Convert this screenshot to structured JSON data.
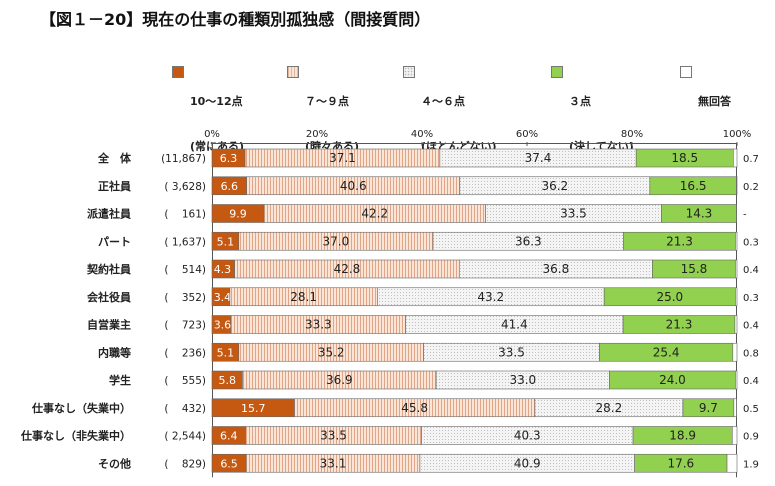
{
  "chart_data": {
    "type": "bar",
    "orientation": "horizontal",
    "stacked": true,
    "title": "【図１－20】現在の仕事の種類別孤独感（間接質問）",
    "xlabel": "",
    "ylabel": "",
    "xlim": [
      0,
      100
    ],
    "x_ticks": [
      "0%",
      "20%",
      "40%",
      "60%",
      "80%",
      "100%"
    ],
    "legend": [
      {
        "line1": "10～12点",
        "line2": "(常にある)",
        "color": "#c65911"
      },
      {
        "line1": "７～９点",
        "line2": "(時々ある)",
        "color": "#fbe5d6"
      },
      {
        "line1": "４～６点",
        "line2": "(ほとんどない)",
        "color": "#f2f2f2"
      },
      {
        "line1": "３点",
        "line2": "(決してない)",
        "color": "#92d050"
      },
      {
        "line1": "無回答",
        "line2": "",
        "color": "#ffffff"
      }
    ],
    "categories": [
      "全　体",
      "正社員",
      "派遣社員",
      "パート",
      "契約社員",
      "会社役員",
      "自営業主",
      "内職等",
      "学生",
      "仕事なし（失業中）",
      "仕事なし（非失業中）",
      "その他"
    ],
    "sample_sizes": [
      "(11,867)",
      "( 3,628)",
      "(    161)",
      "( 1,637)",
      "(    514)",
      "(    352)",
      "(    723)",
      "(    236)",
      "(    555)",
      "(    432)",
      "( 2,544)",
      "(    829)"
    ],
    "series": [
      {
        "name": "10～12点（常にある）",
        "values": [
          6.3,
          6.6,
          9.9,
          5.1,
          4.3,
          3.4,
          3.6,
          5.1,
          5.8,
          15.7,
          6.4,
          6.5
        ]
      },
      {
        "name": "７～９点（時々ある）",
        "values": [
          37.1,
          40.6,
          42.2,
          37.0,
          42.8,
          28.1,
          33.3,
          35.2,
          36.9,
          45.8,
          33.5,
          33.1
        ]
      },
      {
        "name": "４～６点（ほとんどない）",
        "values": [
          37.4,
          36.2,
          33.5,
          36.3,
          36.8,
          43.2,
          41.4,
          33.5,
          33.0,
          28.2,
          40.3,
          40.9
        ]
      },
      {
        "name": "３点（決してない）",
        "values": [
          18.5,
          16.5,
          14.3,
          21.3,
          15.8,
          25.0,
          21.3,
          25.4,
          24.0,
          9.7,
          18.9,
          17.6
        ]
      },
      {
        "name": "無回答",
        "values": [
          0.7,
          0.2,
          null,
          0.3,
          0.4,
          0.3,
          0.4,
          0.8,
          0.4,
          0.5,
          0.9,
          1.9
        ]
      }
    ],
    "value_labels": [
      [
        "6.3",
        "37.1",
        "37.4",
        "18.5",
        "0.7"
      ],
      [
        "6.6",
        "40.6",
        "36.2",
        "16.5",
        "0.2"
      ],
      [
        "9.9",
        "42.2",
        "33.5",
        "14.3",
        "-"
      ],
      [
        "5.1",
        "37.0",
        "36.3",
        "21.3",
        "0.3"
      ],
      [
        "4.3",
        "42.8",
        "36.8",
        "15.8",
        "0.4"
      ],
      [
        "3.4",
        "28.1",
        "43.2",
        "25.0",
        "0.3"
      ],
      [
        "3.6",
        "33.3",
        "41.4",
        "21.3",
        "0.4"
      ],
      [
        "5.1",
        "35.2",
        "33.5",
        "25.4",
        "0.8"
      ],
      [
        "5.8",
        "36.9",
        "33.0",
        "24.0",
        "0.4"
      ],
      [
        "15.7",
        "45.8",
        "28.2",
        "9.7",
        "0.5"
      ],
      [
        "6.4",
        "33.5",
        "40.3",
        "18.9",
        "0.9"
      ],
      [
        "6.5",
        "33.1",
        "40.9",
        "17.6",
        "1.9"
      ]
    ]
  }
}
